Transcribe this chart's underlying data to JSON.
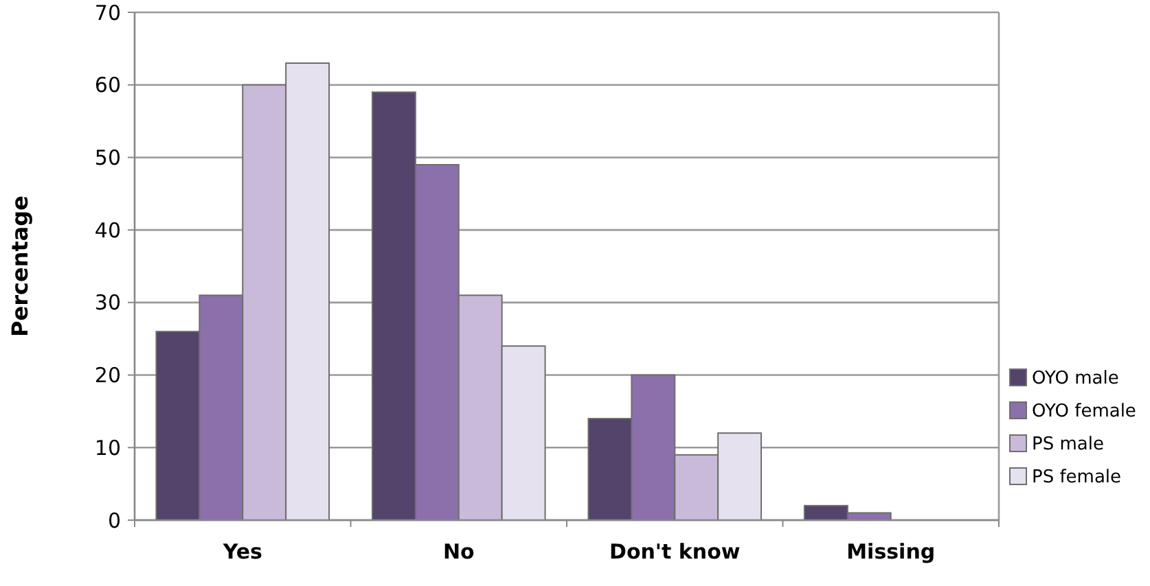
{
  "chart_data": {
    "type": "bar",
    "ylabel": "Percentage",
    "categories": [
      "Yes",
      "No",
      "Don't know",
      "Missing"
    ],
    "series": [
      {
        "name": "OYO male",
        "color": "#54436b",
        "values": [
          26,
          59,
          14,
          2
        ]
      },
      {
        "name": "OYO female",
        "color": "#8b70ac",
        "values": [
          31,
          49,
          20,
          1
        ]
      },
      {
        "name": "PS male",
        "color": "#c9bad9",
        "values": [
          60,
          31,
          9,
          0
        ]
      },
      {
        "name": "PS female",
        "color": "#e6e1ef",
        "values": [
          63,
          24,
          12,
          0
        ]
      }
    ],
    "ylim": [
      0,
      70
    ],
    "yticks": [
      0,
      10,
      20,
      30,
      40,
      50,
      60,
      70
    ],
    "grid": "y",
    "legend": "right"
  }
}
